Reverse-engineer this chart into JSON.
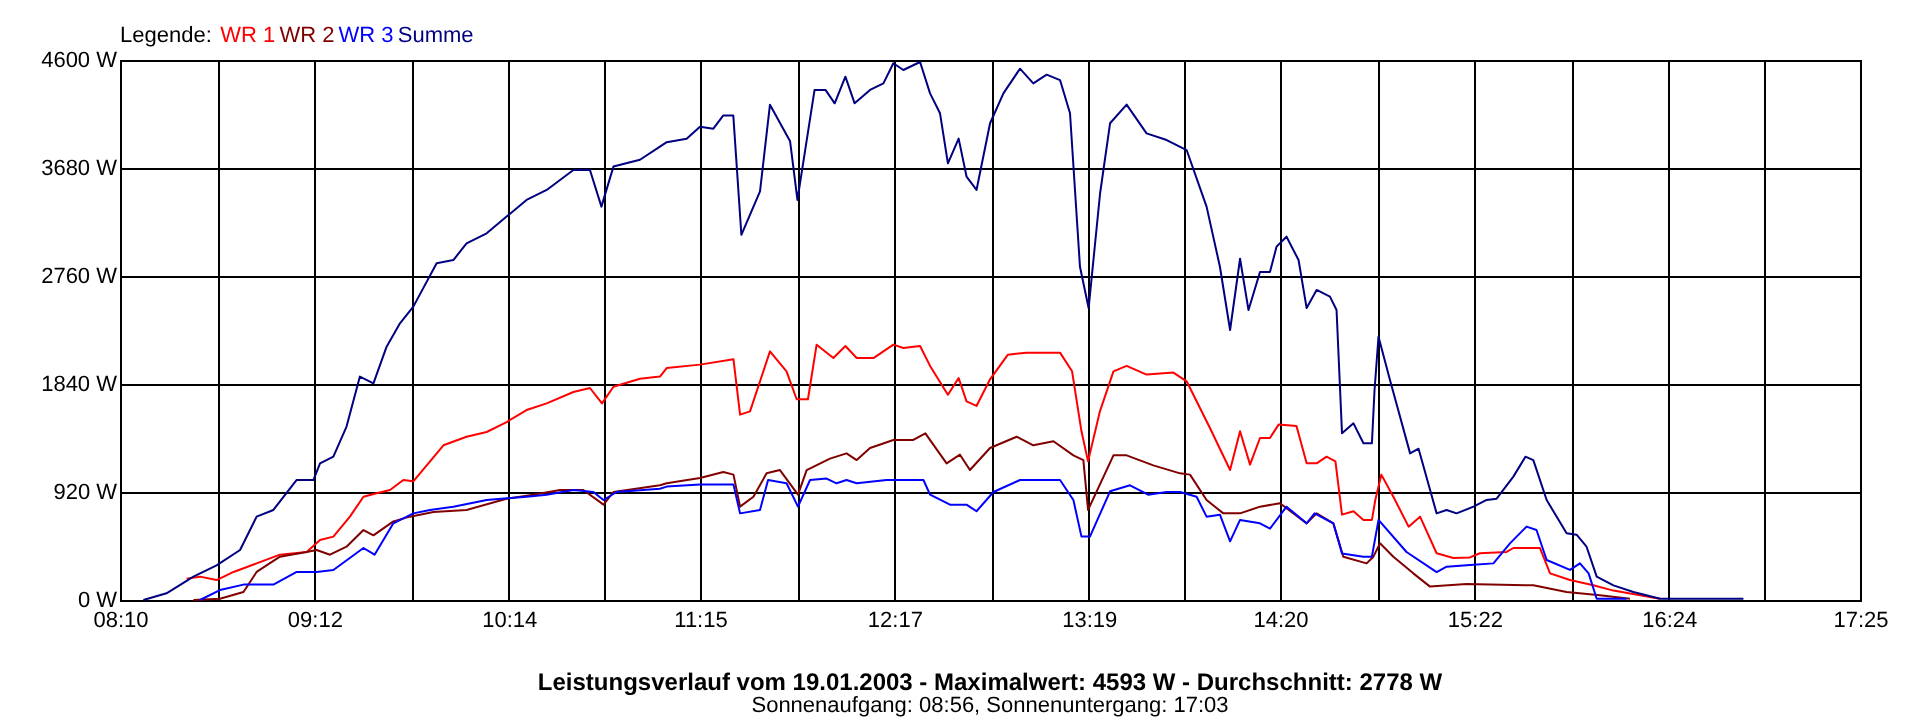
{
  "chart_data": {
    "type": "line",
    "title": "Leistungsverlauf vom 19.01.2003 - Maximalwert: 4593 W - Durchschnitt: 2778 W",
    "subtitle": "Sonnenaufgang: 08:56, Sonnenuntergang: 17:03",
    "legend_title": "Legende:",
    "legend": "top left",
    "grid": true,
    "xlim": [
      8.1667,
      17.4167
    ],
    "xticks": [
      {
        "value": 8.1667,
        "label": "08:10"
      },
      {
        "value": 8.6833,
        "label": null
      },
      {
        "value": 9.2,
        "label": "09:12"
      },
      {
        "value": 9.7167,
        "label": null
      },
      {
        "value": 10.2333,
        "label": "10:14"
      },
      {
        "value": 10.7417,
        "label": null
      },
      {
        "value": 11.25,
        "label": "11:15"
      },
      {
        "value": 11.7667,
        "label": null
      },
      {
        "value": 12.2833,
        "label": "12:17"
      },
      {
        "value": 12.8,
        "label": null
      },
      {
        "value": 13.3167,
        "label": "13:19"
      },
      {
        "value": 13.825,
        "label": null
      },
      {
        "value": 14.3333,
        "label": "14:20"
      },
      {
        "value": 14.85,
        "label": null
      },
      {
        "value": 15.3667,
        "label": "15:22"
      },
      {
        "value": 15.8833,
        "label": null
      },
      {
        "value": 16.4,
        "label": "16:24"
      },
      {
        "value": 16.9083,
        "label": null
      },
      {
        "value": 17.4167,
        "label": "17:25"
      }
    ],
    "ylim": [
      0,
      4600
    ],
    "yticks": [
      {
        "value": 0,
        "label": "0 W"
      },
      {
        "value": 920,
        "label": "920 W"
      },
      {
        "value": 1840,
        "label": "1840 W"
      },
      {
        "value": 2760,
        "label": "2760 W"
      },
      {
        "value": 3680,
        "label": "3680 W"
      },
      {
        "value": 4600,
        "label": "4600 W"
      }
    ],
    "series": [
      {
        "name": "WR 1",
        "color": "#ff0000",
        "x": [
          8.521,
          8.592,
          8.68,
          8.77,
          8.893,
          9.017,
          9.159,
          9.23,
          9.301,
          9.389,
          9.461,
          9.531,
          9.602,
          9.673,
          9.726,
          9.886,
          10.009,
          10.116,
          10.222,
          10.328,
          10.435,
          10.577,
          10.665,
          10.729,
          10.79,
          10.931,
          11.037,
          11.073,
          11.25,
          11.428,
          11.463,
          11.516,
          11.622,
          11.71,
          11.764,
          11.824,
          11.87,
          11.959,
          12.023,
          12.083,
          12.172,
          12.278,
          12.331,
          12.42,
          12.473,
          12.568,
          12.625,
          12.667,
          12.72,
          12.792,
          12.887,
          12.986,
          13.164,
          13.228,
          13.278,
          13.313,
          13.376,
          13.448,
          13.518,
          13.624,
          13.767,
          13.837,
          13.961,
          14.068,
          14.121,
          14.174,
          14.227,
          14.28,
          14.326,
          14.421,
          14.475,
          14.528,
          14.581,
          14.628,
          14.663,
          14.724,
          14.777,
          14.822,
          14.84,
          14.872,
          14.936,
          15.017,
          15.078,
          15.166,
          15.255,
          15.343,
          15.396,
          15.538,
          15.574,
          15.715,
          15.769,
          15.875,
          15.999,
          16.106,
          16.247,
          16.353
        ],
        "values": [
          182,
          199,
          170,
          239,
          312,
          386,
          409,
          511,
          540,
          710,
          880,
          909,
          937,
          1022,
          1011,
          1318,
          1391,
          1431,
          1516,
          1618,
          1675,
          1772,
          1806,
          1675,
          1817,
          1885,
          1903,
          1976,
          2005,
          2050,
          1579,
          1607,
          2118,
          1948,
          1710,
          1710,
          2175,
          2061,
          2164,
          2061,
          2061,
          2175,
          2147,
          2164,
          1994,
          1749,
          1891,
          1692,
          1653,
          1880,
          2090,
          2107,
          2107,
          1948,
          1437,
          1181,
          1607,
          1948,
          1994,
          1920,
          1937,
          1863,
          1465,
          1107,
          1437,
          1153,
          1380,
          1380,
          1494,
          1482,
          1164,
          1164,
          1221,
          1181,
          727,
          756,
          682,
          682,
          852,
          1068,
          880,
          625,
          710,
          398,
          358,
          363,
          398,
          409,
          443,
          443,
          227,
          170,
          125,
          80,
          40,
          11
        ]
      },
      {
        "name": "WR 2",
        "color": "#800000",
        "x": [
          8.557,
          8.698,
          8.823,
          8.893,
          9.017,
          9.159,
          9.212,
          9.283,
          9.371,
          9.461,
          9.514,
          9.62,
          9.708,
          9.833,
          10.009,
          10.222,
          10.364,
          10.506,
          10.63,
          10.737,
          10.79,
          11.037,
          11.073,
          11.25,
          11.374,
          11.428,
          11.463,
          11.534,
          11.604,
          11.675,
          11.771,
          11.817,
          11.941,
          12.029,
          12.083,
          12.154,
          12.278,
          12.384,
          12.448,
          12.561,
          12.632,
          12.685,
          12.792,
          12.933,
          13.022,
          13.129,
          13.235,
          13.288,
          13.313,
          13.448,
          13.518,
          13.66,
          13.802,
          13.855,
          13.943,
          14.032,
          14.121,
          14.227,
          14.333,
          14.475,
          14.528,
          14.617,
          14.67,
          14.794,
          14.83,
          14.865,
          14.936,
          15.042,
          15.131,
          15.325,
          15.68,
          15.857,
          16.034,
          16.194
        ],
        "values": [
          0,
          11,
          68,
          239,
          369,
          409,
          426,
          386,
          454,
          596,
          551,
          670,
          710,
          750,
          767,
          863,
          897,
          937,
          937,
          812,
          920,
          977,
          994,
          1039,
          1090,
          1068,
          795,
          880,
          1079,
          1107,
          897,
          1107,
          1204,
          1249,
          1192,
          1295,
          1363,
          1363,
          1420,
          1164,
          1238,
          1107,
          1295,
          1391,
          1318,
          1352,
          1232,
          1192,
          767,
          1232,
          1232,
          1147,
          1079,
          1068,
          852,
          738,
          738,
          795,
          824,
          653,
          738,
          653,
          369,
          312,
          369,
          483,
          369,
          227,
          114,
          136,
          125,
          68,
          40,
          11
        ]
      },
      {
        "name": "WR 3",
        "color": "#0000ff",
        "x": [
          8.592,
          8.698,
          8.823,
          8.982,
          9.106,
          9.212,
          9.301,
          9.461,
          9.52,
          9.62,
          9.726,
          9.815,
          9.939,
          10.116,
          10.328,
          10.435,
          10.577,
          10.683,
          10.737,
          10.807,
          11.037,
          11.073,
          11.25,
          11.428,
          11.463,
          11.569,
          11.612,
          11.71,
          11.771,
          11.835,
          11.923,
          11.976,
          12.029,
          12.083,
          12.242,
          12.438,
          12.473,
          12.579,
          12.667,
          12.72,
          12.81,
          12.951,
          13.164,
          13.235,
          13.278,
          13.323,
          13.43,
          13.536,
          13.632,
          13.73,
          13.802,
          13.89,
          13.943,
          14.014,
          14.068,
          14.121,
          14.227,
          14.28,
          14.368,
          14.475,
          14.517,
          14.617,
          14.663,
          14.777,
          14.822,
          14.857,
          15.006,
          15.166,
          15.219,
          15.362,
          15.468,
          15.556,
          15.644,
          15.697,
          15.751,
          15.875,
          15.928,
          15.974,
          16.017,
          16.176
        ],
        "values": [
          0,
          85,
          131,
          131,
          239,
          239,
          256,
          443,
          386,
          653,
          738,
          767,
          795,
          852,
          880,
          897,
          937,
          920,
          852,
          920,
          948,
          966,
          983,
          983,
          738,
          767,
          1022,
          994,
          795,
          1022,
          1034,
          994,
          1022,
          994,
          1022,
          1022,
          897,
          812,
          812,
          756,
          920,
          1022,
          1022,
          852,
          540,
          540,
          926,
          977,
          897,
          920,
          920,
          880,
          710,
          727,
          500,
          682,
          653,
          608,
          795,
          653,
          738,
          653,
          397,
          369,
          369,
          682,
          409,
          238,
          284,
          301,
          312,
          482,
          625,
          596,
          341,
          256,
          312,
          227,
          11,
          11
        ]
      },
      {
        "name": "Summe",
        "color": "#000080",
        "x": [
          8.291,
          8.414,
          8.557,
          8.68,
          8.805,
          8.893,
          8.982,
          9.105,
          9.195,
          9.23,
          9.301,
          9.371,
          9.442,
          9.514,
          9.584,
          9.655,
          9.726,
          9.85,
          9.939,
          10.009,
          10.116,
          10.222,
          10.328,
          10.435,
          10.577,
          10.665,
          10.726,
          10.79,
          10.931,
          11.037,
          11.073,
          11.179,
          11.25,
          11.321,
          11.374,
          11.427,
          11.47,
          11.569,
          11.622,
          11.729,
          11.768,
          11.859,
          11.917,
          11.966,
          12.023,
          12.072,
          12.154,
          12.225,
          12.278,
          12.331,
          12.42,
          12.473,
          12.526,
          12.568,
          12.625,
          12.667,
          12.72,
          12.792,
          12.863,
          12.951,
          13.022,
          13.093,
          13.164,
          13.217,
          13.27,
          13.316,
          13.377,
          13.43,
          13.518,
          13.624,
          13.731,
          13.837,
          13.943,
          14.014,
          14.068,
          14.121,
          14.166,
          14.227,
          14.28,
          14.315,
          14.368,
          14.432,
          14.475,
          14.528,
          14.599,
          14.634,
          14.663,
          14.724,
          14.777,
          14.822,
          14.836,
          14.857,
          14.918,
          15.025,
          15.07,
          15.166,
          15.219,
          15.272,
          15.362,
          15.432,
          15.485,
          15.574,
          15.638,
          15.68,
          15.751,
          15.857,
          15.91,
          15.963,
          16.017,
          16.106,
          16.212,
          16.354,
          16.797
        ],
        "values": [
          0,
          57,
          199,
          295,
          426,
          710,
          767,
          1022,
          1022,
          1164,
          1221,
          1477,
          1903,
          1846,
          2158,
          2357,
          2499,
          2868,
          2896,
          3038,
          3124,
          3266,
          3408,
          3493,
          3663,
          3663,
          3351,
          3692,
          3750,
          3862,
          3900,
          3929,
          4032,
          4015,
          4128,
          4128,
          3111,
          3480,
          4219,
          3907,
          3408,
          4345,
          4345,
          4231,
          4458,
          4231,
          4345,
          4401,
          4572,
          4515,
          4583,
          4316,
          4146,
          3720,
          3930,
          3607,
          3493,
          4061,
          4316,
          4526,
          4401,
          4475,
          4429,
          4146,
          2839,
          2487,
          3465,
          4061,
          4220,
          3975,
          3918,
          3833,
          3351,
          2839,
          2300,
          2907,
          2470,
          2794,
          2794,
          3010,
          3095,
          2896,
          2487,
          2641,
          2584,
          2470,
          1420,
          1505,
          1335,
          1335,
          1789,
          2243,
          1874,
          1249,
          1289,
          738,
          767,
          738,
          795,
          852,
          863,
          1051,
          1221,
          1192,
          852,
          568,
          556,
          454,
          199,
          125,
          68,
          11,
          11
        ]
      }
    ]
  }
}
